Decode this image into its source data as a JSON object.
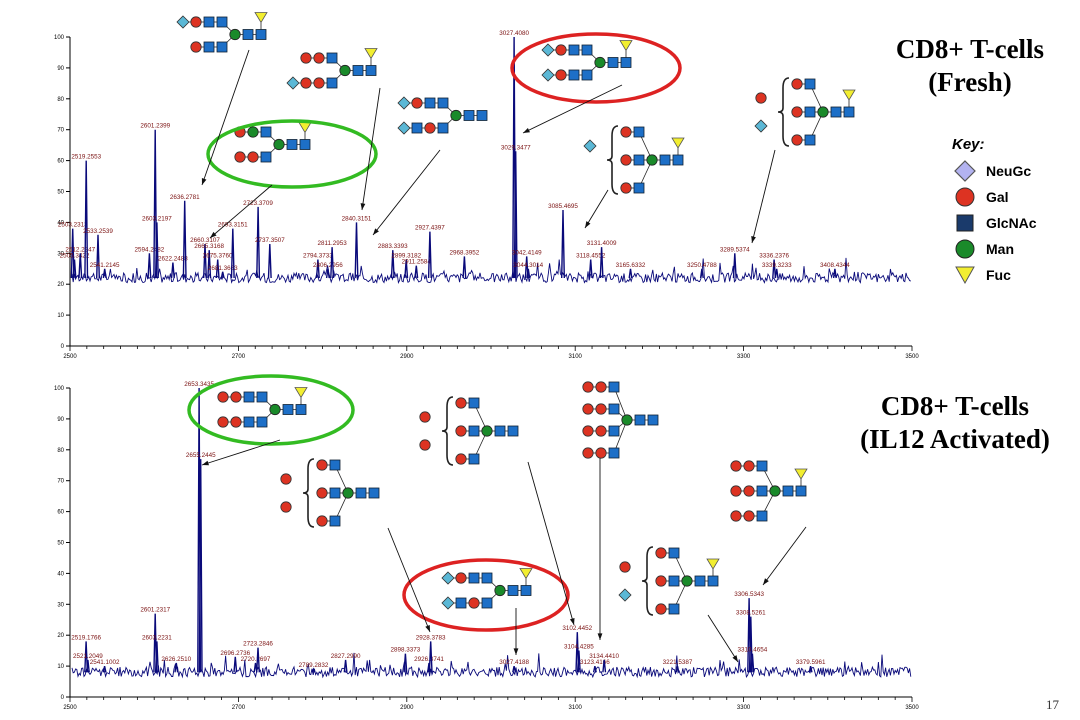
{
  "page_number": "17",
  "key": {
    "title": "Key:",
    "items": [
      {
        "label": "NeuGc",
        "shape": "diamond",
        "color": "#b3b3f0"
      },
      {
        "label": "Gal",
        "shape": "circle",
        "color": "#dd3322"
      },
      {
        "label": "GlcNAc",
        "shape": "square",
        "color": "#1a3a6b"
      },
      {
        "label": "Man",
        "shape": "circle",
        "color": "#1a8a2a"
      },
      {
        "label": "Fuc",
        "shape": "triangle",
        "color": "#f2ee30"
      }
    ]
  },
  "chart_data": [
    {
      "type": "line",
      "title": "CD8+ T-cells\n(Fresh)",
      "xlim": [
        2500,
        3500
      ],
      "ylim": [
        0,
        100
      ],
      "xticks": [
        "2500",
        "2700",
        "2900",
        "3100",
        "3300",
        "3500"
      ],
      "yticks": [
        "0",
        "10",
        "20",
        "30",
        "40",
        "50",
        "60",
        "70",
        "80",
        "90",
        "100"
      ],
      "baseline": 22,
      "peaks": [
        {
          "x": 2503.23,
          "y": 38,
          "label": "2503.2313"
        },
        {
          "x": 2505.34,
          "y": 28,
          "label": "2505.3422"
        },
        {
          "x": 2512.23,
          "y": 30,
          "label": "2512.2347"
        },
        {
          "x": 2519.26,
          "y": 60,
          "label": "2519.2553"
        },
        {
          "x": 2533.25,
          "y": 36,
          "label": "2533.2539"
        },
        {
          "x": 2541.21,
          "y": 25,
          "label": "2541.2145"
        },
        {
          "x": 2594.25,
          "y": 30,
          "label": "2594.2482"
        },
        {
          "x": 2601.24,
          "y": 70,
          "label": "2601.2399"
        },
        {
          "x": 2603.22,
          "y": 40,
          "label": "2603.2197"
        },
        {
          "x": 2622.25,
          "y": 27,
          "label": "2622.2488"
        },
        {
          "x": 2636.28,
          "y": 47,
          "label": "2636.2781"
        },
        {
          "x": 2660.31,
          "y": 33,
          "label": "2660.3107"
        },
        {
          "x": 2665.32,
          "y": 31,
          "label": "2665.3168"
        },
        {
          "x": 2675.38,
          "y": 28,
          "label": "2675.3760"
        },
        {
          "x": 2681.37,
          "y": 24,
          "label": "2681.3663"
        },
        {
          "x": 2693.32,
          "y": 38,
          "label": "2693.3151"
        },
        {
          "x": 2723.37,
          "y": 45,
          "label": "2723.3709"
        },
        {
          "x": 2737.35,
          "y": 33,
          "label": "2737.3507"
        },
        {
          "x": 2794.37,
          "y": 28,
          "label": "2794.3733"
        },
        {
          "x": 2806.3,
          "y": 25,
          "label": "2806.2956"
        },
        {
          "x": 2811.3,
          "y": 32,
          "label": "2811.2953"
        },
        {
          "x": 2840.32,
          "y": 40,
          "label": "2840.3151"
        },
        {
          "x": 2883.34,
          "y": 31,
          "label": "2883.3393"
        },
        {
          "x": 2899.32,
          "y": 28,
          "label": "2899.3182"
        },
        {
          "x": 2911.26,
          "y": 26,
          "label": "2911.2584"
        },
        {
          "x": 2927.44,
          "y": 37,
          "label": "2927.4397"
        },
        {
          "x": 2968.4,
          "y": 29,
          "label": "2968.3952"
        },
        {
          "x": 3027.41,
          "y": 100,
          "label": "3027.4080"
        },
        {
          "x": 3029.35,
          "y": 63,
          "label": "3029.3477"
        },
        {
          "x": 3042.41,
          "y": 29,
          "label": "3042.4149"
        },
        {
          "x": 3044.3,
          "y": 25,
          "label": "3044.3014"
        },
        {
          "x": 3085.47,
          "y": 44,
          "label": "3085.4695"
        },
        {
          "x": 3118.46,
          "y": 28,
          "label": "3118.4552"
        },
        {
          "x": 3131.4,
          "y": 32,
          "label": "3131.4009"
        },
        {
          "x": 3165.63,
          "y": 25,
          "label": "3165.6332"
        },
        {
          "x": 3250.48,
          "y": 25,
          "label": "3250.4788"
        },
        {
          "x": 3289.54,
          "y": 30,
          "label": "3289.5374"
        },
        {
          "x": 3336.24,
          "y": 28,
          "label": "3336.2376"
        },
        {
          "x": 3339.32,
          "y": 25,
          "label": "3339.3233"
        },
        {
          "x": 3408.43,
          "y": 25,
          "label": "3408.4344"
        }
      ]
    },
    {
      "type": "line",
      "title": "CD8+ T-cells\n(IL12 Activated)",
      "xlim": [
        2500,
        3500
      ],
      "ylim": [
        0,
        100
      ],
      "xticks": [
        "2500",
        "2700",
        "2900",
        "3100",
        "3300",
        "3500"
      ],
      "yticks": [
        "0",
        "10",
        "20",
        "30",
        "40",
        "50",
        "60",
        "70",
        "80",
        "90",
        "100"
      ],
      "baseline": 8,
      "peaks": [
        {
          "x": 2519.18,
          "y": 18,
          "label": "2519.1766"
        },
        {
          "x": 2521.2,
          "y": 12,
          "label": "2521.2049"
        },
        {
          "x": 2541.1,
          "y": 10,
          "label": "2541.1002"
        },
        {
          "x": 2601.23,
          "y": 27,
          "label": "2601.2317"
        },
        {
          "x": 2603.22,
          "y": 18,
          "label": "2603.2231"
        },
        {
          "x": 2626.25,
          "y": 11,
          "label": "2626.2510"
        },
        {
          "x": 2653.34,
          "y": 100,
          "label": "2653.3435"
        },
        {
          "x": 2655.24,
          "y": 77,
          "label": "2655.2445"
        },
        {
          "x": 2696.27,
          "y": 13,
          "label": "2696.2736"
        },
        {
          "x": 2720.27,
          "y": 11,
          "label": "2720.2697"
        },
        {
          "x": 2723.28,
          "y": 16,
          "label": "2723.2846"
        },
        {
          "x": 2789.28,
          "y": 9,
          "label": "2789.2832"
        },
        {
          "x": 2827.3,
          "y": 12,
          "label": "2827.2990"
        },
        {
          "x": 2898.34,
          "y": 14,
          "label": "2898.3373"
        },
        {
          "x": 2926.37,
          "y": 11,
          "label": "2926.3741"
        },
        {
          "x": 2928.38,
          "y": 18,
          "label": "2928.3783"
        },
        {
          "x": 3027.42,
          "y": 10,
          "label": "3027.4188"
        },
        {
          "x": 3102.45,
          "y": 21,
          "label": "3102.4452"
        },
        {
          "x": 3104.43,
          "y": 15,
          "label": "3104.4285"
        },
        {
          "x": 3123.42,
          "y": 10,
          "label": "3123.4166"
        },
        {
          "x": 3134.44,
          "y": 12,
          "label": "3134.4410"
        },
        {
          "x": 3221.54,
          "y": 10,
          "label": "3221.5387"
        },
        {
          "x": 3306.53,
          "y": 32,
          "label": "3306.5343"
        },
        {
          "x": 3308.53,
          "y": 26,
          "label": "3308.5261"
        },
        {
          "x": 3310.47,
          "y": 14,
          "label": "3310.4654"
        },
        {
          "x": 3379.6,
          "y": 10,
          "label": "3379.5961"
        }
      ]
    }
  ]
}
